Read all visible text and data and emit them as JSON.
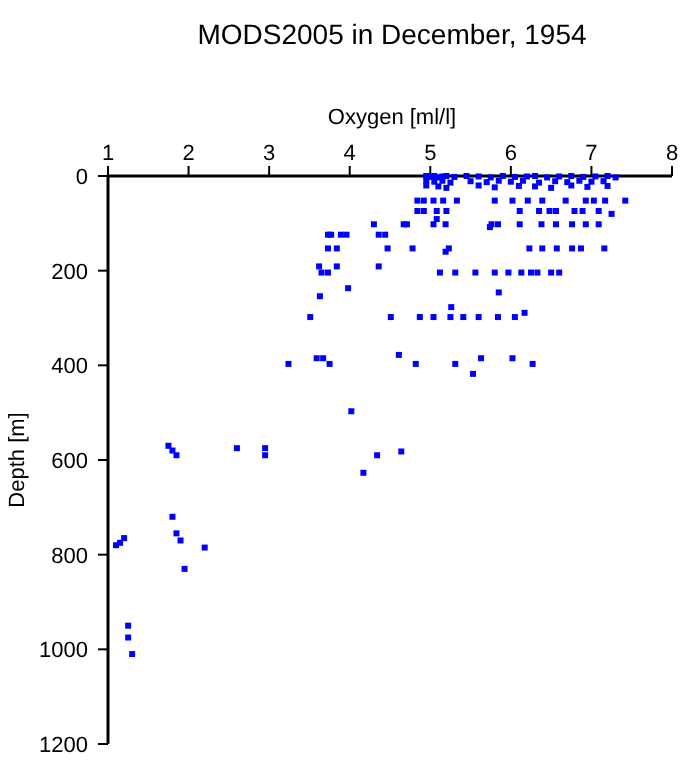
{
  "chart_data": {
    "type": "scatter",
    "title": "MODS2005 in December, 1954",
    "xlabel": "Oxygen [ml/l]",
    "ylabel": "Depth [m]",
    "xlim": [
      1,
      8
    ],
    "xticks": [
      1,
      2,
      3,
      4,
      5,
      6,
      7,
      8
    ],
    "ylim": [
      1200,
      0
    ],
    "yticks": [
      0,
      200,
      400,
      600,
      800,
      1000,
      1200
    ],
    "grid": false,
    "marker": "square",
    "series": [
      {
        "color": "#0000ff",
        "x": [
          4.95,
          5.0,
          5.05,
          5.1,
          5.15,
          5.2,
          5.3,
          5.45,
          5.6,
          5.75,
          5.9,
          6.05,
          6.2,
          6.3,
          6.45,
          6.6,
          6.75,
          6.9,
          7.05,
          7.2,
          7.3,
          4.95,
          5.05,
          5.15,
          5.25,
          5.5,
          5.7,
          5.85,
          6.0,
          6.15,
          6.35,
          6.55,
          6.7,
          6.85,
          7.0,
          7.15,
          4.95,
          5.1,
          5.2,
          5.6,
          5.8,
          6.1,
          6.3,
          6.5,
          6.75,
          6.95,
          7.2,
          4.84,
          4.92,
          5.04,
          5.16,
          5.33,
          5.8,
          6.02,
          6.21,
          6.39,
          6.68,
          6.93,
          7.03,
          7.17,
          7.42,
          4.84,
          4.92,
          5.08,
          5.2,
          6.11,
          6.35,
          6.48,
          6.56,
          6.79,
          6.89,
          7.09,
          7.25,
          5.08,
          4.3,
          4.67,
          4.71,
          5.04,
          5.19,
          5.76,
          5.84,
          6.11,
          6.38,
          6.56,
          6.76,
          6.93,
          7.09,
          5.74,
          3.73,
          3.77,
          3.89,
          3.96,
          4.36,
          4.44,
          3.73,
          3.84,
          4.47,
          4.78,
          5.23,
          6.23,
          6.39,
          6.57,
          6.76,
          6.87,
          7.16,
          5.19,
          3.62,
          3.84,
          4.36,
          3.65,
          3.73,
          5.12,
          5.31,
          5.56,
          5.8,
          5.97,
          6.13,
          6.25,
          6.33,
          6.5,
          6.6,
          3.98,
          5.85,
          3.63,
          5.26,
          6.17,
          3.51,
          4.51,
          4.87,
          5.04,
          5.25,
          5.41,
          5.6,
          5.84,
          6.05,
          4.61,
          3.59,
          3.67,
          5.63,
          6.02,
          3.24,
          3.75,
          4.82,
          5.31,
          6.27,
          5.53,
          4.02,
          4.34,
          4.64,
          4.17,
          1.75,
          1.8,
          1.85,
          2.6,
          2.95,
          2.95,
          1.8,
          1.85,
          1.9,
          2.2,
          1.95,
          1.15,
          1.2,
          1.1,
          1.25,
          1.25,
          1.3
        ],
        "values": [
          0,
          2,
          0,
          3,
          1,
          0,
          2,
          0,
          1,
          3,
          0,
          2,
          1,
          0,
          3,
          1,
          0,
          2,
          1,
          0,
          3,
          10,
          12,
          10,
          14,
          11,
          13,
          10,
          12,
          10,
          14,
          11,
          13,
          10,
          12,
          11,
          20,
          22,
          25,
          20,
          24,
          21,
          22,
          25,
          20,
          23,
          21,
          52,
          52,
          52,
          52,
          52,
          52,
          52,
          52,
          52,
          52,
          52,
          52,
          52,
          52,
          74,
          74,
          74,
          74,
          74,
          74,
          74,
          74,
          74,
          74,
          74,
          80,
          91,
          102,
          102,
          102,
          102,
          102,
          102,
          102,
          102,
          102,
          102,
          102,
          102,
          102,
          108,
          124,
          124,
          124,
          124,
          124,
          124,
          153,
          153,
          153,
          153,
          153,
          153,
          153,
          153,
          153,
          153,
          153,
          160,
          191,
          191,
          191,
          204,
          204,
          204,
          204,
          204,
          204,
          204,
          204,
          204,
          204,
          204,
          204,
          237,
          246,
          254,
          277,
          289,
          298,
          298,
          298,
          298,
          298,
          298,
          298,
          298,
          298,
          378,
          385,
          385,
          385,
          385,
          397,
          397,
          397,
          397,
          397,
          418,
          497,
          590,
          582,
          627,
          570,
          580,
          590,
          575,
          575,
          590,
          720,
          755,
          770,
          785,
          830,
          775,
          765,
          780,
          950,
          975,
          1010
        ]
      }
    ]
  }
}
